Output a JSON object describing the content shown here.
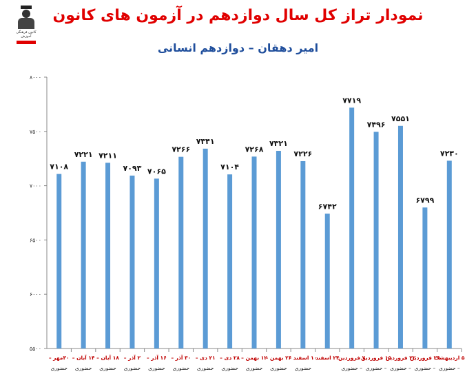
{
  "title": "نمودار تراز کل سال دوازدهم در آزمون های کانون",
  "subtitle": "امیر دهقان – دوازدهم انسانی",
  "logo": {
    "icon": "graduate-logo-icon",
    "text": "کانون فرهنگی آموزش"
  },
  "colors": {
    "bar": "#5b9bd5",
    "title": "#e00000",
    "subtitle": "#1f4e9c",
    "category": "#c00000"
  },
  "chart_data": {
    "type": "bar",
    "title": "نمودار تراز کل سال دوازدهم در آزمون های کانون",
    "subtitle": "امیر دهقان – دوازدهم انسانی",
    "xlabel": "",
    "ylabel": "",
    "ylim": [
      5500,
      8000
    ],
    "yticks": [
      5500,
      6000,
      6500,
      7000,
      7500,
      8000
    ],
    "ytick_labels": [
      "۵۵۰۰",
      "۶۰۰۰",
      "۶۵۰۰",
      "۷۰۰۰",
      "۷۵۰۰",
      "۸۰۰۰"
    ],
    "grid": false,
    "legend": "none",
    "categories": [
      "۳۰مهر – حضوری",
      "۱۴ آبان – حضوری",
      "۱۸ آبان – حضوری",
      "۲ آذر – حضوری",
      "۱۶ آذر – حضوری",
      "۳۰ آذر – حضوری",
      "۲۱ دی – حضوری",
      "۲۸ دی – حضوری",
      "۱۲ بهمن – حضوری",
      "۲۶ بهمن – حضوری",
      "۱۰ اسفند – حضوری",
      "۲۴ اسفند",
      "۷ فروردین – حضوری",
      "۱۵ فروردین – حضوری",
      "۲۲ فروردین – حضوری",
      "۲۹ فروردین – حضوری",
      "۵ اردیبهشت – حضوری"
    ],
    "category_lines": [
      [
        "۳۰مهر –",
        "حضوری"
      ],
      [
        "۱۴ آبان –",
        "حضوری"
      ],
      [
        "۱۸ آبان –",
        "حضوری"
      ],
      [
        "۲ آذر –",
        "حضوری"
      ],
      [
        "۱۶ آذر –",
        "حضوری"
      ],
      [
        "۳۰ آذر –",
        "حضوری"
      ],
      [
        "۲۱ دی –",
        "حضوری"
      ],
      [
        "۲۸ دی –",
        "حضوری"
      ],
      [
        "۱۲ بهمن –",
        "حضوری"
      ],
      [
        "۲۶ بهمن –",
        "حضوری"
      ],
      [
        "۱۰ اسفند –",
        "حضوری"
      ],
      [
        "۲۴ اسفند",
        ""
      ],
      [
        "۷ فروردین",
        "– حضوری"
      ],
      [
        "۱۵ فروردین",
        "– حضوری"
      ],
      [
        "۲۲ فروردین",
        "– حضوری"
      ],
      [
        "۲۹ فروردین",
        "– حضوری"
      ],
      [
        "۵ اردیبهشت",
        "– حضوری"
      ]
    ],
    "values": [
      7108,
      7221,
      7211,
      7093,
      7065,
      7266,
      7341,
      7104,
      7268,
      7321,
      7226,
      6742,
      7719,
      7496,
      7551,
      6799,
      7230
    ],
    "value_labels": [
      "۷۱۰۸",
      "۷۲۲۱",
      "۷۲۱۱",
      "۷۰۹۳",
      "۷۰۶۵",
      "۷۲۶۶",
      "۷۳۴۱",
      "۷۱۰۴",
      "۷۲۶۸",
      "۷۳۲۱",
      "۷۲۲۶",
      "۶۷۴۲",
      "۷۷۱۹",
      "۷۴۹۶",
      "۷۵۵۱",
      "۶۷۹۹",
      "۷۲۳۰"
    ]
  }
}
